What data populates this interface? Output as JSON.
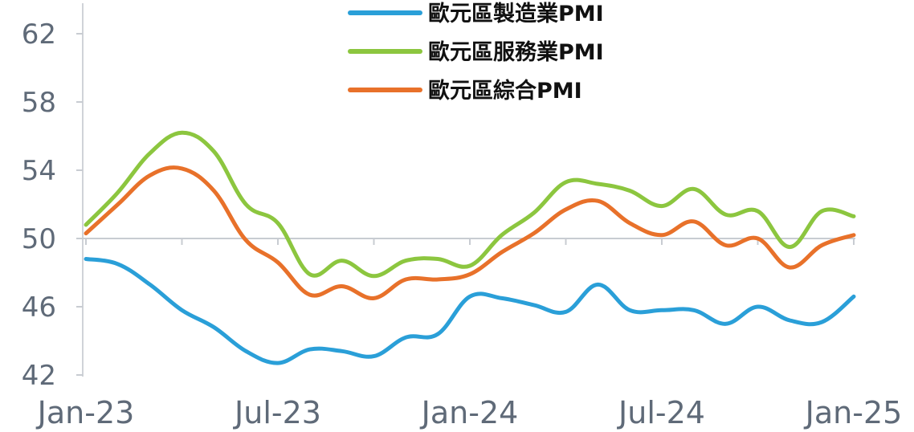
{
  "chart_data": {
    "type": "line",
    "x": [
      "Jan-23",
      "Feb-23",
      "Mar-23",
      "Apr-23",
      "May-23",
      "Jun-23",
      "Jul-23",
      "Aug-23",
      "Sep-23",
      "Oct-23",
      "Nov-23",
      "Dec-23",
      "Jan-24",
      "Feb-24",
      "Mar-24",
      "Apr-24",
      "May-24",
      "Jun-24",
      "Jul-24",
      "Aug-24",
      "Sep-24",
      "Oct-24",
      "Nov-24",
      "Dec-24",
      "Jan-25"
    ],
    "x_tick_labels": [
      "Jan-23",
      "Jul-23",
      "Jan-24",
      "Jul-24",
      "Jan-25"
    ],
    "y_ticks": [
      42,
      46,
      50,
      54,
      58,
      62
    ],
    "ylim": [
      41.8,
      63.5
    ],
    "reference_line": 50,
    "legend_position": "top-center",
    "series": [
      {
        "name": "歐元區製造業PMI",
        "color": "#2a9fd8",
        "values": [
          48.8,
          48.5,
          47.3,
          45.8,
          44.8,
          43.4,
          42.7,
          43.5,
          43.4,
          43.1,
          44.2,
          44.4,
          46.6,
          46.5,
          46.1,
          45.7,
          47.3,
          45.8,
          45.8,
          45.8,
          45.0,
          46.0,
          45.2,
          45.1,
          46.6
        ]
      },
      {
        "name": "歐元區服務業PMI",
        "color": "#8cc63f",
        "values": [
          50.8,
          52.7,
          55.0,
          56.2,
          55.1,
          52.0,
          50.9,
          47.9,
          48.7,
          47.8,
          48.7,
          48.8,
          48.4,
          50.2,
          51.5,
          53.3,
          53.2,
          52.8,
          51.9,
          52.9,
          51.4,
          51.6,
          49.5,
          51.6,
          51.3
        ]
      },
      {
        "name": "歐元區綜合PMI",
        "color": "#e8712a",
        "values": [
          50.3,
          52.0,
          53.7,
          54.1,
          52.8,
          49.9,
          48.6,
          46.7,
          47.2,
          46.5,
          47.6,
          47.6,
          47.9,
          49.2,
          50.3,
          51.7,
          52.2,
          50.9,
          50.2,
          51.0,
          49.6,
          50.0,
          48.3,
          49.6,
          50.2
        ]
      }
    ]
  }
}
